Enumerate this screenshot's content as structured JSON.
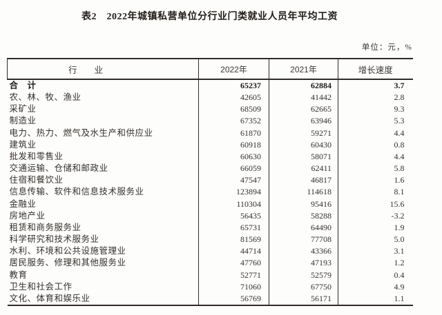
{
  "title": "表2　2022年城镇私营单位分行业门类就业人员年平均工资",
  "unit_note": "单位：元，%",
  "table": {
    "columns": [
      "行　　业",
      "2022年",
      "2021年",
      "增长速度"
    ],
    "rows": [
      {
        "industry": "合　计",
        "y2022": "65237",
        "y2021": "62884",
        "growth": "3.7",
        "bold": true
      },
      {
        "industry": "农、林、牧、渔业",
        "y2022": "42605",
        "y2021": "41442",
        "growth": "2.8",
        "bold": false
      },
      {
        "industry": "采矿业",
        "y2022": "68509",
        "y2021": "62665",
        "growth": "9.3",
        "bold": false
      },
      {
        "industry": "制造业",
        "y2022": "67352",
        "y2021": "63946",
        "growth": "5.3",
        "bold": false
      },
      {
        "industry": "电力、热力、燃气及水生产和供应业",
        "y2022": "61870",
        "y2021": "59271",
        "growth": "4.4",
        "bold": false
      },
      {
        "industry": "建筑业",
        "y2022": "60918",
        "y2021": "60430",
        "growth": "0.8",
        "bold": false
      },
      {
        "industry": "批发和零售业",
        "y2022": "60630",
        "y2021": "58071",
        "growth": "4.4",
        "bold": false
      },
      {
        "industry": "交通运输、仓储和邮政业",
        "y2022": "66059",
        "y2021": "62411",
        "growth": "5.8",
        "bold": false
      },
      {
        "industry": "住宿和餐饮业",
        "y2022": "47547",
        "y2021": "46817",
        "growth": "1.6",
        "bold": false
      },
      {
        "industry": "信息传输、软件和信息技术服务业",
        "y2022": "123894",
        "y2021": "114618",
        "growth": "8.1",
        "bold": false
      },
      {
        "industry": "金融业",
        "y2022": "110304",
        "y2021": "95416",
        "growth": "15.6",
        "bold": false
      },
      {
        "industry": "房地产业",
        "y2022": "56435",
        "y2021": "58288",
        "growth": "-3.2",
        "bold": false
      },
      {
        "industry": "租赁和商务服务业",
        "y2022": "65731",
        "y2021": "64490",
        "growth": "1.9",
        "bold": false
      },
      {
        "industry": "科学研究和技术服务业",
        "y2022": "81569",
        "y2021": "77708",
        "growth": "5.0",
        "bold": false
      },
      {
        "industry": "水利、环境和公共设施管理业",
        "y2022": "44714",
        "y2021": "43366",
        "growth": "3.1",
        "bold": false
      },
      {
        "industry": "居民服务、修理和其他服务业",
        "y2022": "47760",
        "y2021": "47193",
        "growth": "1.2",
        "bold": false
      },
      {
        "industry": "教育",
        "y2022": "52771",
        "y2021": "52579",
        "growth": "0.4",
        "bold": false
      },
      {
        "industry": "卫生和社会工作",
        "y2022": "71060",
        "y2021": "67750",
        "growth": "4.9",
        "bold": false
      },
      {
        "industry": "文化、体育和娱乐业",
        "y2022": "56769",
        "y2021": "56171",
        "growth": "1.1",
        "bold": false
      }
    ]
  },
  "colors": {
    "text": "#34302b",
    "title": "#211d19",
    "border": "#2e2a26",
    "background": "#fdfdfc"
  }
}
